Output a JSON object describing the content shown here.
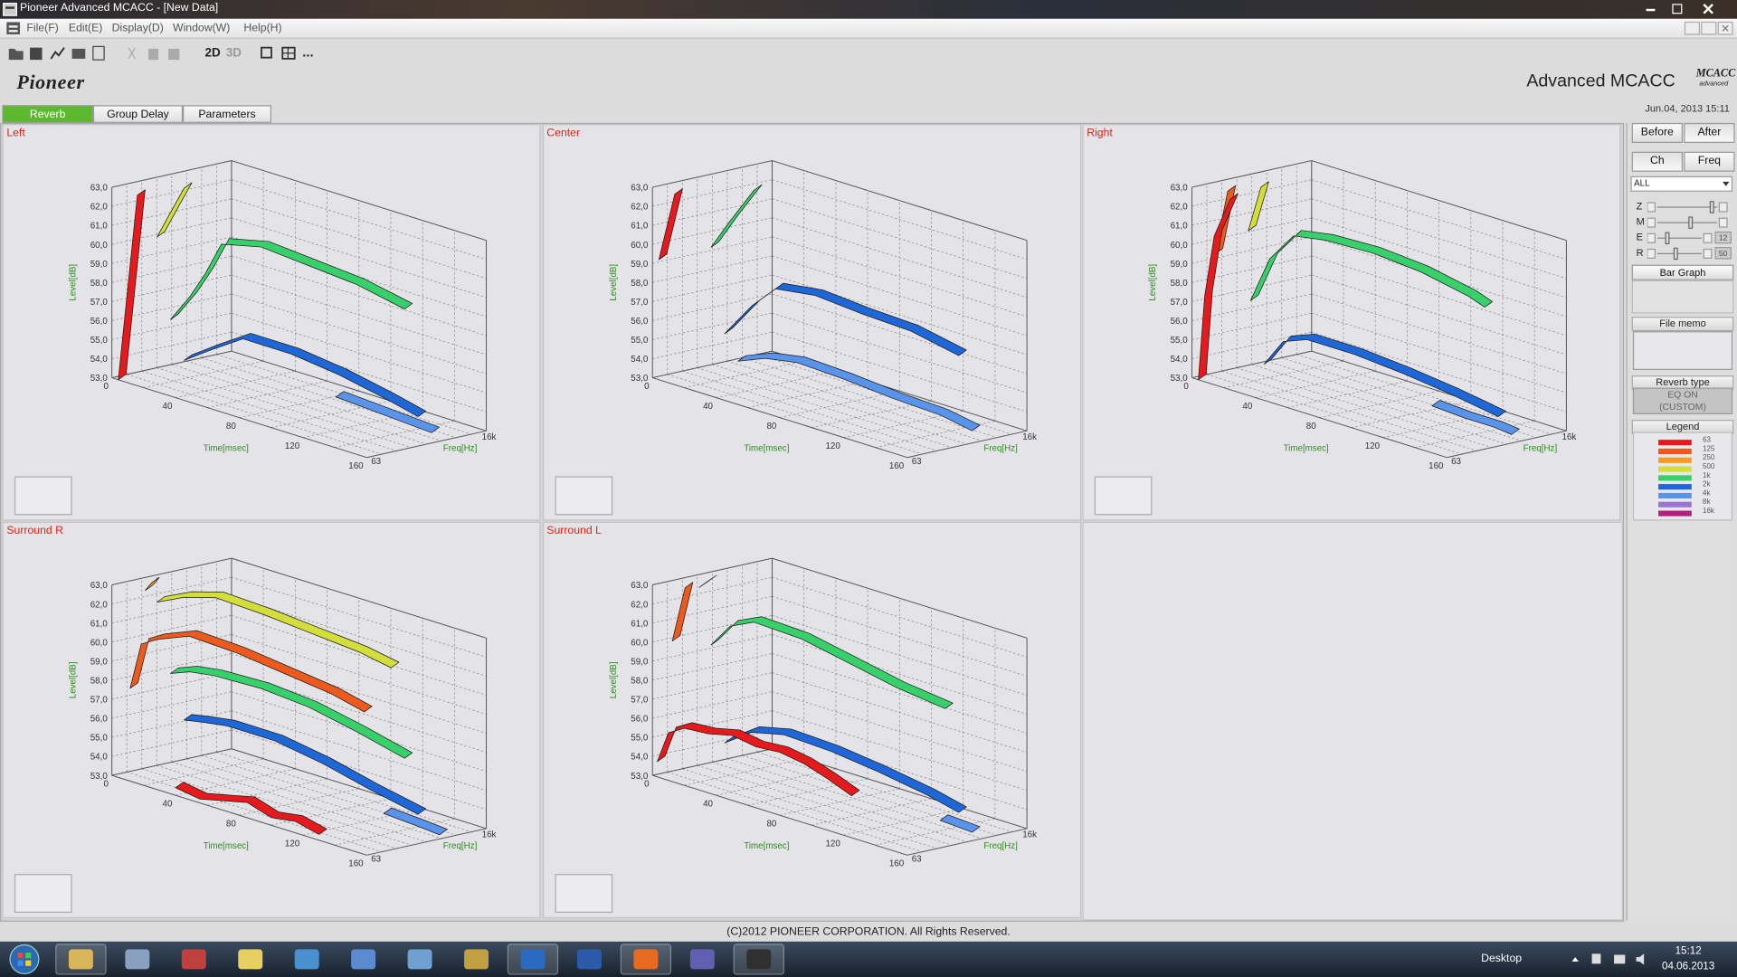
{
  "window": {
    "title": "Pioneer Advanced MCACC - [New Data]",
    "menu": [
      "File(F)",
      "Edit(E)",
      "Display(D)",
      "Window(W)",
      "Help(H)"
    ]
  },
  "toolbar": {
    "view_2d": "2D",
    "view_3d": "3D",
    "more": "..."
  },
  "header": {
    "brand": "Pioneer",
    "product": "Advanced MCACC",
    "badge": "MCACC",
    "badge_sub": "advanced",
    "timestamp": "Jun.04, 2013 15:11"
  },
  "tabs": [
    "Reverb",
    "Group Delay",
    "Parameters"
  ],
  "axes": {
    "level_label": "Level[dB]",
    "level_ticks": [
      {
        "value": 53,
        "label": "53,0"
      },
      {
        "value": 54,
        "label": "54,0"
      },
      {
        "value": 55,
        "label": "55,0"
      },
      {
        "value": 56,
        "label": "56,0"
      },
      {
        "value": 57,
        "label": "57,0"
      },
      {
        "value": 58,
        "label": "58,0"
      },
      {
        "value": 59,
        "label": "59,0"
      },
      {
        "value": 60,
        "label": "60,0"
      },
      {
        "value": 61,
        "label": "61,0"
      },
      {
        "value": 62,
        "label": "62,0"
      },
      {
        "value": 63,
        "label": "63,0"
      }
    ],
    "time_label": "Time[msec]",
    "time_ticks": [
      0,
      40,
      80,
      120,
      160
    ],
    "freq_label": "Freq[Hz]",
    "freq_ticks": [
      "63",
      "16k"
    ]
  },
  "panels": [
    {
      "title": "Left",
      "curves": [
        {
          "band": "63",
          "t": [
            4,
            10,
            16
          ],
          "level": [
            53,
            58,
            63
          ]
        },
        {
          "band": "500",
          "t": [
            3,
            12,
            20
          ],
          "level": [
            60,
            61.6,
            63
          ]
        },
        {
          "band": "1k",
          "t": [
            3,
            15,
            25,
            35,
            60,
            90,
            120,
            150
          ],
          "level": [
            55.5,
            57,
            58.5,
            60.3,
            60.8,
            60.6,
            60.4,
            59.9
          ]
        },
        {
          "band": "2k",
          "t": [
            3,
            20,
            40,
            70,
            100,
            130,
            150
          ],
          "level": [
            53.2,
            54.2,
            55.3,
            55.3,
            55,
            54.5,
            54.1
          ]
        },
        {
          "band": "4k",
          "t": [
            90,
            110,
            130,
            150
          ],
          "level": [
            53.4,
            53.3,
            53.2,
            53.1
          ]
        }
      ]
    },
    {
      "title": "Center",
      "curves": [
        {
          "band": "63",
          "t": [
            4,
            14
          ],
          "level": [
            59.3,
            63
          ]
        },
        {
          "band": "1k",
          "t": [
            3,
            15,
            30
          ],
          "level": [
            59.3,
            61,
            63
          ]
        },
        {
          "band": "2k",
          "t": [
            3,
            20,
            35,
            60,
            90,
            120,
            150
          ],
          "level": [
            54.6,
            56.5,
            57.8,
            58.1,
            57.9,
            57.8,
            57.3
          ]
        },
        {
          "band": "4k",
          "t": [
            3,
            20,
            40,
            70,
            100,
            130,
            150
          ],
          "level": [
            53,
            53.6,
            53.9,
            53.8,
            53.6,
            53.5,
            53.2
          ]
        }
      ]
    },
    {
      "title": "Right",
      "curves": [
        {
          "band": "63",
          "t": [
            4,
            8,
            14,
            24
          ],
          "level": [
            53,
            57.5,
            60.8,
            63
          ]
        },
        {
          "band": "125",
          "t": [
            6,
            14
          ],
          "level": [
            59.5,
            63
          ]
        },
        {
          "band": "500",
          "t": [
            10,
            18
          ],
          "level": [
            60.5,
            63
          ]
        },
        {
          "band": "1k",
          "t": [
            3,
            15,
            30,
            50,
            80,
            110,
            140,
            150
          ],
          "level": [
            56.5,
            59,
            60.6,
            60.9,
            61,
            60.8,
            60.3,
            60
          ]
        },
        {
          "band": "2k",
          "t": [
            3,
            15,
            30,
            60,
            90,
            120,
            150
          ],
          "level": [
            53,
            54.5,
            55,
            55,
            54.8,
            54.5,
            54.1
          ]
        },
        {
          "band": "4k",
          "t": [
            100,
            120,
            140,
            150
          ],
          "level": [
            53.2,
            53.1,
            53.1,
            53
          ]
        }
      ]
    },
    {
      "title": "Surround R",
      "curves": [
        {
          "band": "250",
          "t": [
            4,
            8
          ],
          "level": [
            62.5,
            63
          ]
        },
        {
          "band": "500",
          "t": [
            3,
            20,
            40,
            70,
            100,
            130,
            150
          ],
          "level": [
            61.7,
            62.4,
            62.9,
            62.8,
            62.6,
            62.4,
            62.1
          ]
        },
        {
          "band": "125",
          "t": [
            3,
            10,
            20,
            40,
            70,
            100,
            130,
            150
          ],
          "level": [
            57.5,
            60,
            60.5,
            61.2,
            61.1,
            60.8,
            60.5,
            60.1
          ]
        },
        {
          "band": "1k",
          "t": [
            3,
            15,
            30,
            60,
            90,
            120,
            150
          ],
          "level": [
            57.8,
            58.2,
            58.4,
            58.5,
            58.3,
            57.8,
            57.2
          ]
        },
        {
          "band": "2k",
          "t": [
            3,
            15,
            30,
            60,
            90,
            120,
            150
          ],
          "level": [
            55.2,
            55.4,
            55.6,
            55.6,
            55.2,
            54.6,
            54.1
          ]
        },
        {
          "band": "63",
          "t": [
            40,
            55,
            70,
            85,
            100,
            115,
            130
          ],
          "level": [
            53.4,
            53.2,
            53.5,
            53.8,
            53.4,
            53.6,
            53.3
          ]
        },
        {
          "band": "4k",
          "t": [
            120,
            140,
            155
          ],
          "level": [
            53.2,
            53.1,
            53
          ]
        }
      ]
    },
    {
      "title": "Surround L",
      "curves": [
        {
          "band": "125",
          "t": [
            4,
            12
          ],
          "level": [
            60,
            63
          ]
        },
        {
          "band": "500",
          "t": [
            4,
            10
          ],
          "level": [
            62.5,
            63
          ]
        },
        {
          "band": "1k",
          "t": [
            3,
            15,
            30,
            60,
            90,
            120,
            150
          ],
          "level": [
            59.3,
            60.6,
            61.2,
            61.1,
            60.6,
            60.1,
            59.8
          ]
        },
        {
          "band": "63",
          "t": [
            3,
            10,
            20,
            35,
            50,
            65,
            80,
            95,
            110,
            125
          ],
          "level": [
            53.8,
            55.5,
            56,
            56.1,
            56.4,
            56.2,
            56.3,
            56.1,
            55.7,
            55.2
          ]
        },
        {
          "band": "2k",
          "t": [
            3,
            20,
            40,
            70,
            100,
            130,
            150
          ],
          "level": [
            54,
            55,
            55.4,
            55.3,
            55,
            54.6,
            54.2
          ]
        },
        {
          "band": "4k",
          "t": [
            130,
            150
          ],
          "level": [
            53.1,
            53
          ]
        }
      ]
    }
  ],
  "side": {
    "compare": [
      "Before",
      "After"
    ],
    "mode": [
      "Ch",
      "Freq"
    ],
    "channel": "ALL",
    "sliders": [
      {
        "label": "Z"
      },
      {
        "label": "M"
      },
      {
        "label": "E",
        "value": "12"
      },
      {
        "label": "R",
        "value": "50"
      }
    ],
    "bar_graph": "Bar Graph",
    "file_memo": "File memo",
    "reverb_type": "Reverb type",
    "reverb_state": [
      "EQ ON",
      "(CUSTOM)"
    ],
    "legend_title": "Legend"
  },
  "legend": [
    {
      "label": "63",
      "color": "#e41a1c"
    },
    {
      "label": "125",
      "color": "#ec5a1e"
    },
    {
      "label": "250",
      "color": "#f59a22"
    },
    {
      "label": "500",
      "color": "#d4de3a"
    },
    {
      "label": "1k",
      "color": "#38d06a"
    },
    {
      "label": "2k",
      "color": "#1f66d6"
    },
    {
      "label": "4k",
      "color": "#5a94ea"
    },
    {
      "label": "8k",
      "color": "#9a74d2"
    },
    {
      "label": "16k",
      "color": "#b0207e"
    }
  ],
  "footer": "(C)2012 PIONEER CORPORATION. All Rights Reserved.",
  "taskbar": {
    "desktop": "Desktop",
    "time": "15:12",
    "date": "04.06.2013"
  }
}
